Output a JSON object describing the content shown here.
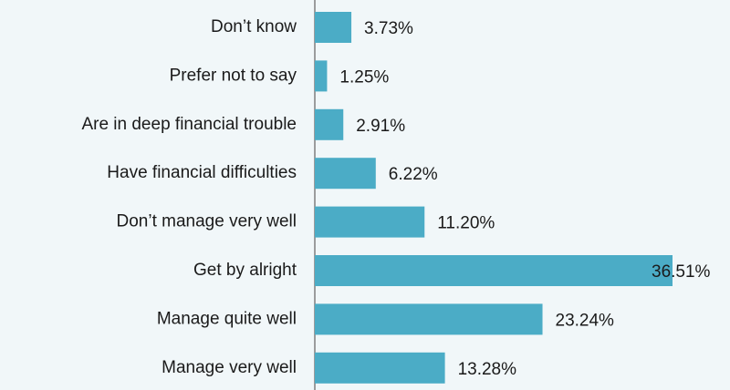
{
  "chart_data": {
    "type": "bar",
    "orientation": "horizontal",
    "color": "#4bacc6",
    "categories": [
      "Don’t know",
      "Prefer not to say",
      "Are in deep financial trouble",
      "Have financial difficulties",
      "Don’t manage very well",
      "Get by alright",
      "Manage quite well",
      "Manage very well"
    ],
    "values": [
      3.73,
      1.25,
      2.91,
      6.22,
      11.2,
      36.51,
      23.24,
      13.28
    ],
    "value_labels": [
      "3.73%",
      "1.25%",
      "2.91%",
      "6.22%",
      "11.20%",
      "36.51%",
      "23.24%",
      "13.28%"
    ]
  }
}
